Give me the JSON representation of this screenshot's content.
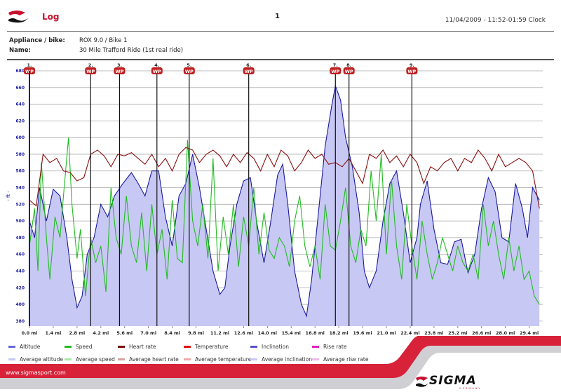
{
  "header": {
    "title": "Log",
    "page_number": "1",
    "datetime": "11/04/2009 - 11:52-01:59 Clock"
  },
  "info": {
    "appliance_label": "Appliance / bike:",
    "appliance_value": "ROX 9.0 / Bike 1",
    "name_label": "Name:",
    "name_value": "30 Mile Trafford Ride (1st real ride)"
  },
  "chart_data": {
    "type": "line",
    "ylabel": "- ft -",
    "ylim": [
      374,
      680
    ],
    "xlim": [
      0,
      30.2
    ],
    "yticks": [
      380,
      400,
      420,
      440,
      460,
      480,
      500,
      520,
      540,
      560,
      580,
      600,
      620,
      640,
      660,
      680
    ],
    "xticks": [
      "0.0 mi",
      "1.4 mi",
      "2.8 mi",
      "4.2 mi",
      "5.6 mi",
      "7.0 mi",
      "8.4 mi",
      "9.8 mi",
      "11.2 mi",
      "12.6 mi",
      "14.0 mi",
      "15.4 mi",
      "16.8 mi",
      "18.2 mi",
      "19.6 mi",
      "21.0 mi",
      "22.4 mi",
      "23.8 mi",
      "25.2 mi",
      "26.6 mi",
      "28.0 mi",
      "29.4 mi"
    ],
    "grid": true,
    "waypoints": [
      {
        "label": "1.",
        "badge": "WP",
        "mi": 0.0
      },
      {
        "label": "2.",
        "badge": "WP",
        "mi": 3.6
      },
      {
        "label": "3.",
        "badge": "WP",
        "mi": 5.3
      },
      {
        "label": "4.",
        "badge": "WP",
        "mi": 7.5
      },
      {
        "label": "5.",
        "badge": "WP",
        "mi": 9.4
      },
      {
        "label": "6.",
        "badge": "WP",
        "mi": 12.9
      },
      {
        "label": "7.",
        "badge": "WP",
        "mi": 18.0
      },
      {
        "label": "8.",
        "badge": "WP",
        "mi": 18.8
      },
      {
        "label": "9.",
        "badge": "WP",
        "mi": 22.5
      }
    ],
    "series": [
      {
        "name": "Altitude",
        "color": "#1a1aa0",
        "fill": "#c8c8f4",
        "x": [
          0,
          0.3,
          0.6,
          1.0,
          1.4,
          1.8,
          2.2,
          2.5,
          2.8,
          3.1,
          3.4,
          3.8,
          4.2,
          4.6,
          5.0,
          5.5,
          6.0,
          6.4,
          6.8,
          7.2,
          7.6,
          8.0,
          8.4,
          8.8,
          9.2,
          9.6,
          10.0,
          10.4,
          10.8,
          11.2,
          11.5,
          11.8,
          12.2,
          12.6,
          13.0,
          13.4,
          13.8,
          14.2,
          14.6,
          14.9,
          15.2,
          15.6,
          16.0,
          16.3,
          16.6,
          17.0,
          17.4,
          17.8,
          18.0,
          18.3,
          18.6,
          19.0,
          19.4,
          19.7,
          20.0,
          20.4,
          20.8,
          21.2,
          21.6,
          22.0,
          22.4,
          22.8,
          23.0,
          23.4,
          23.8,
          24.2,
          24.6,
          25.0,
          25.4,
          25.8,
          26.2,
          26.6,
          27.0,
          27.4,
          27.8,
          28.2,
          28.6,
          29.0,
          29.3,
          29.6,
          30.0
        ],
        "y": [
          500,
          480,
          540,
          500,
          538,
          530,
          480,
          430,
          396,
          410,
          460,
          480,
          520,
          505,
          530,
          545,
          558,
          545,
          530,
          560,
          560,
          505,
          470,
          530,
          545,
          580,
          540,
          490,
          440,
          412,
          420,
          470,
          520,
          548,
          552,
          495,
          450,
          500,
          555,
          568,
          520,
          440,
          400,
          386,
          430,
          510,
          590,
          640,
          662,
          645,
          600,
          565,
          510,
          440,
          420,
          440,
          500,
          545,
          560,
          510,
          450,
          480,
          520,
          548,
          490,
          450,
          448,
          475,
          478,
          438,
          460,
          515,
          552,
          535,
          480,
          475,
          545,
          515,
          480,
          540,
          525
        ]
      },
      {
        "name": "Speed",
        "color": "#22bb22",
        "x": [
          0,
          0.3,
          0.5,
          0.7,
          1.0,
          1.2,
          1.5,
          1.8,
          2.0,
          2.3,
          2.5,
          2.8,
          3.0,
          3.3,
          3.6,
          3.9,
          4.2,
          4.5,
          4.8,
          5.1,
          5.4,
          5.7,
          6.0,
          6.3,
          6.6,
          6.9,
          7.2,
          7.5,
          7.8,
          8.1,
          8.4,
          8.7,
          9.0,
          9.3,
          9.6,
          9.9,
          10.2,
          10.5,
          10.8,
          11.1,
          11.4,
          11.7,
          12.0,
          12.3,
          12.6,
          12.9,
          13.2,
          13.5,
          13.8,
          14.1,
          14.4,
          14.7,
          15.0,
          15.3,
          15.6,
          15.9,
          16.2,
          16.5,
          16.8,
          17.1,
          17.4,
          17.7,
          18.0,
          18.3,
          18.6,
          18.9,
          19.2,
          19.5,
          19.8,
          20.1,
          20.4,
          20.7,
          21.0,
          21.3,
          21.6,
          21.9,
          22.2,
          22.5,
          22.8,
          23.1,
          23.4,
          23.7,
          24.0,
          24.3,
          24.6,
          24.9,
          25.2,
          25.5,
          25.8,
          26.1,
          26.4,
          26.7,
          27.0,
          27.3,
          27.6,
          27.9,
          28.2,
          28.5,
          28.8,
          29.1,
          29.4,
          29.7,
          30.0
        ],
        "y": [
          470,
          515,
          440,
          570,
          480,
          430,
          505,
          480,
          530,
          600,
          520,
          455,
          490,
          410,
          480,
          450,
          470,
          415,
          540,
          480,
          460,
          530,
          470,
          450,
          510,
          440,
          520,
          460,
          490,
          430,
          525,
          455,
          450,
          597,
          500,
          470,
          520,
          455,
          575,
          440,
          505,
          460,
          520,
          445,
          505,
          470,
          540,
          460,
          510,
          465,
          455,
          480,
          470,
          445,
          500,
          530,
          470,
          445,
          470,
          430,
          520,
          470,
          465,
          500,
          540,
          470,
          450,
          490,
          470,
          560,
          500,
          580,
          460,
          550,
          470,
          430,
          520,
          470,
          430,
          500,
          460,
          430,
          450,
          480,
          460,
          440,
          470,
          450,
          440,
          460,
          430,
          520,
          470,
          500,
          460,
          430,
          480,
          440,
          470,
          430,
          440,
          410,
          400
        ]
      },
      {
        "name": "Heart rate",
        "color": "#8b1010",
        "x": [
          0,
          0.4,
          0.8,
          1.2,
          1.6,
          2.0,
          2.4,
          2.8,
          3.2,
          3.6,
          4.0,
          4.4,
          4.8,
          5.2,
          5.6,
          6.0,
          6.4,
          6.8,
          7.2,
          7.6,
          8.0,
          8.4,
          8.8,
          9.2,
          9.6,
          10.0,
          10.4,
          10.8,
          11.2,
          11.6,
          12.0,
          12.4,
          12.8,
          13.2,
          13.6,
          14.0,
          14.4,
          14.8,
          15.2,
          15.6,
          16.0,
          16.4,
          16.8,
          17.2,
          17.6,
          18.0,
          18.4,
          18.8,
          19.2,
          19.6,
          20.0,
          20.4,
          20.8,
          21.2,
          21.6,
          22.0,
          22.4,
          22.8,
          23.2,
          23.6,
          24.0,
          24.4,
          24.8,
          25.2,
          25.6,
          26.0,
          26.4,
          26.8,
          27.2,
          27.6,
          28.0,
          28.4,
          28.8,
          29.2,
          29.6,
          30.0
        ],
        "y": [
          525,
          518,
          580,
          570,
          575,
          560,
          558,
          548,
          552,
          580,
          585,
          578,
          565,
          580,
          578,
          582,
          575,
          568,
          580,
          565,
          575,
          560,
          580,
          588,
          585,
          570,
          580,
          585,
          578,
          565,
          580,
          570,
          582,
          575,
          560,
          580,
          565,
          585,
          578,
          560,
          570,
          585,
          575,
          580,
          568,
          570,
          565,
          575,
          560,
          545,
          580,
          575,
          585,
          570,
          578,
          565,
          580,
          570,
          545,
          565,
          560,
          570,
          575,
          560,
          575,
          570,
          585,
          575,
          560,
          580,
          565,
          570,
          575,
          570,
          560,
          515
        ]
      }
    ],
    "legend": [
      {
        "label": "Altitude",
        "color": "#6666dd"
      },
      {
        "label": "Speed",
        "color": "#22bb22"
      },
      {
        "label": "Heart rate",
        "color": "#7a0f0f"
      },
      {
        "label": "Temperature",
        "color": "#e01010"
      },
      {
        "label": "Inclination",
        "color": "#5555cc"
      },
      {
        "label": "Rise rate",
        "color": "#e020c0"
      },
      {
        "label": "Average altitude",
        "color": "#c8c8f4"
      },
      {
        "label": "Average speed",
        "color": "#a8e8a8"
      },
      {
        "label": "Average heart rate",
        "color": "#d8a0a0"
      },
      {
        "label": "Average temperature",
        "color": "#f0a8a8"
      },
      {
        "label": "Average inclination",
        "color": "#c8c8f4"
      },
      {
        "label": "Average rise rate",
        "color": "#f0b8e8"
      }
    ]
  },
  "footer": {
    "url": "www.sigmasport.com",
    "brand": "SIGMA",
    "brand_sub": "GERMANY",
    "accent": "#d8223a"
  }
}
